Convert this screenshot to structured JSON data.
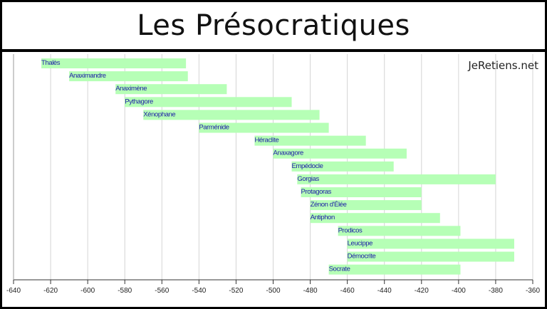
{
  "page_title": "Les Présocratiques",
  "watermark": "JeRetiens.net",
  "chart_data": {
    "type": "bar",
    "orientation": "horizontal-timeline",
    "xlim": [
      -640,
      -360
    ],
    "x_ticks": [
      -640,
      -620,
      -600,
      -580,
      -560,
      -540,
      -520,
      -500,
      -480,
      -460,
      -440,
      -420,
      -400,
      -380,
      -360
    ],
    "grid": true,
    "bar_color": "#b6ffb6",
    "label_color": "#1a1aa6",
    "series": [
      {
        "name": "Thalès",
        "start": -625,
        "end": -547
      },
      {
        "name": "Anaximandre",
        "start": -610,
        "end": -546
      },
      {
        "name": "Anaximène",
        "start": -585,
        "end": -525
      },
      {
        "name": "Pythagore",
        "start": -580,
        "end": -490
      },
      {
        "name": "Xénophane",
        "start": -570,
        "end": -475
      },
      {
        "name": "Parménide",
        "start": -540,
        "end": -470
      },
      {
        "name": "Héraclite",
        "start": -510,
        "end": -450
      },
      {
        "name": "Anaxagore",
        "start": -500,
        "end": -428
      },
      {
        "name": "Empédocle",
        "start": -490,
        "end": -435
      },
      {
        "name": "Gorgias",
        "start": -487,
        "end": -380
      },
      {
        "name": "Protagoras",
        "start": -485,
        "end": -420
      },
      {
        "name": "Zénon d'Élée",
        "start": -480,
        "end": -420
      },
      {
        "name": "Antiphon",
        "start": -480,
        "end": -410
      },
      {
        "name": "Prodicos",
        "start": -465,
        "end": -399
      },
      {
        "name": "Leucippe",
        "start": -460,
        "end": -370
      },
      {
        "name": "Démocrite",
        "start": -460,
        "end": -370
      },
      {
        "name": "Socrate",
        "start": -470,
        "end": -399
      }
    ]
  }
}
